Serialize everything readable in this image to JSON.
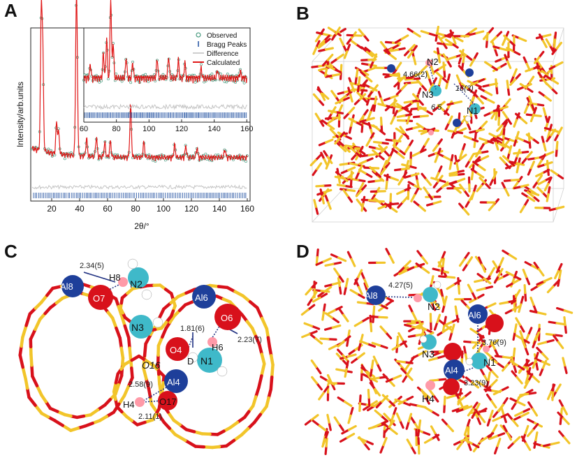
{
  "panels": {
    "a": {
      "letter": "A"
    },
    "b": {
      "letter": "B"
    },
    "c": {
      "letter": "C"
    },
    "d": {
      "letter": "D"
    }
  },
  "chart_data": {
    "type": "line",
    "xlabel": "2θ/°",
    "ylabel": "Intensity/arb.units",
    "xlim": [
      5,
      162
    ],
    "xticks": [
      "20",
      "40",
      "60",
      "80",
      "100",
      "120",
      "140",
      "160"
    ],
    "inset_xlim": [
      60,
      162
    ],
    "inset_xticks": [
      "60",
      "80",
      "100",
      "120",
      "140",
      "160"
    ],
    "legend": {
      "placement": "top-right",
      "entries": [
        "Observed",
        "Bragg Peaks",
        "Difference",
        "Calculated"
      ]
    },
    "colors": {
      "observed": "#2a8a6a",
      "calculated": "#e01818",
      "difference": "#bdbdbd",
      "bragg": "#1f4fa0"
    },
    "major_peaks_x": [
      12.5,
      13.6,
      23.5,
      37.5,
      38.1,
      76.5
    ]
  },
  "panel_b": {
    "labels": [
      "N2",
      "N3",
      "N1",
      "4.66(2)",
      "16(3)",
      "6.5"
    ]
  },
  "panel_c": {
    "atoms": [
      "Al8",
      "O7",
      "N2",
      "H8",
      "Al6",
      "O6",
      "N3",
      "H6",
      "O4",
      "N1",
      "D",
      "O16",
      "Al4",
      "H4",
      "O17"
    ],
    "distances": [
      "2.34(5)",
      "1.81(6)",
      "2.23(7)",
      "2.58(9)",
      "2.11(1)"
    ]
  },
  "panel_d": {
    "atoms": [
      "Al8",
      "N2",
      "Al6",
      "N3",
      "Al4",
      "N1",
      "H4"
    ],
    "distances": [
      "4.27(5)",
      "3.76(9)",
      "3.23(9)"
    ]
  }
}
